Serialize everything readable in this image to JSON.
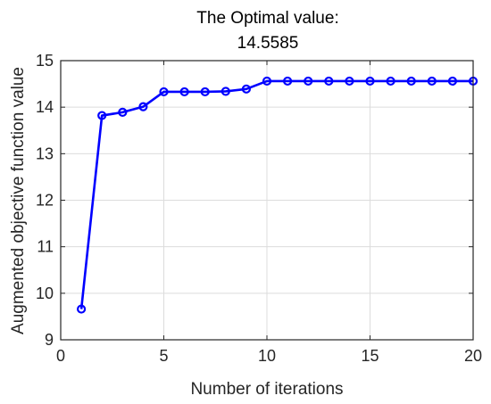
{
  "chart_data": {
    "type": "line",
    "title": [
      "The Optimal value:",
      "14.5585"
    ],
    "xlabel": "Number of iterations",
    "ylabel": "Augmented objective function value",
    "xlim": [
      0,
      20
    ],
    "ylim": [
      9,
      15
    ],
    "xticks": [
      0,
      5,
      10,
      15,
      20
    ],
    "yticks": [
      9,
      10,
      11,
      12,
      13,
      14,
      15
    ],
    "grid": true,
    "legend": "none",
    "series": [
      {
        "color": "#0000ff",
        "marker": "circle",
        "x": [
          1,
          2,
          3,
          4,
          5,
          6,
          7,
          8,
          9,
          10,
          11,
          12,
          13,
          14,
          15,
          16,
          17,
          18,
          19,
          20
        ],
        "y": [
          9.66,
          13.82,
          13.89,
          14.01,
          14.33,
          14.33,
          14.33,
          14.34,
          14.39,
          14.56,
          14.56,
          14.56,
          14.56,
          14.56,
          14.56,
          14.56,
          14.56,
          14.56,
          14.56,
          14.56
        ]
      }
    ]
  }
}
